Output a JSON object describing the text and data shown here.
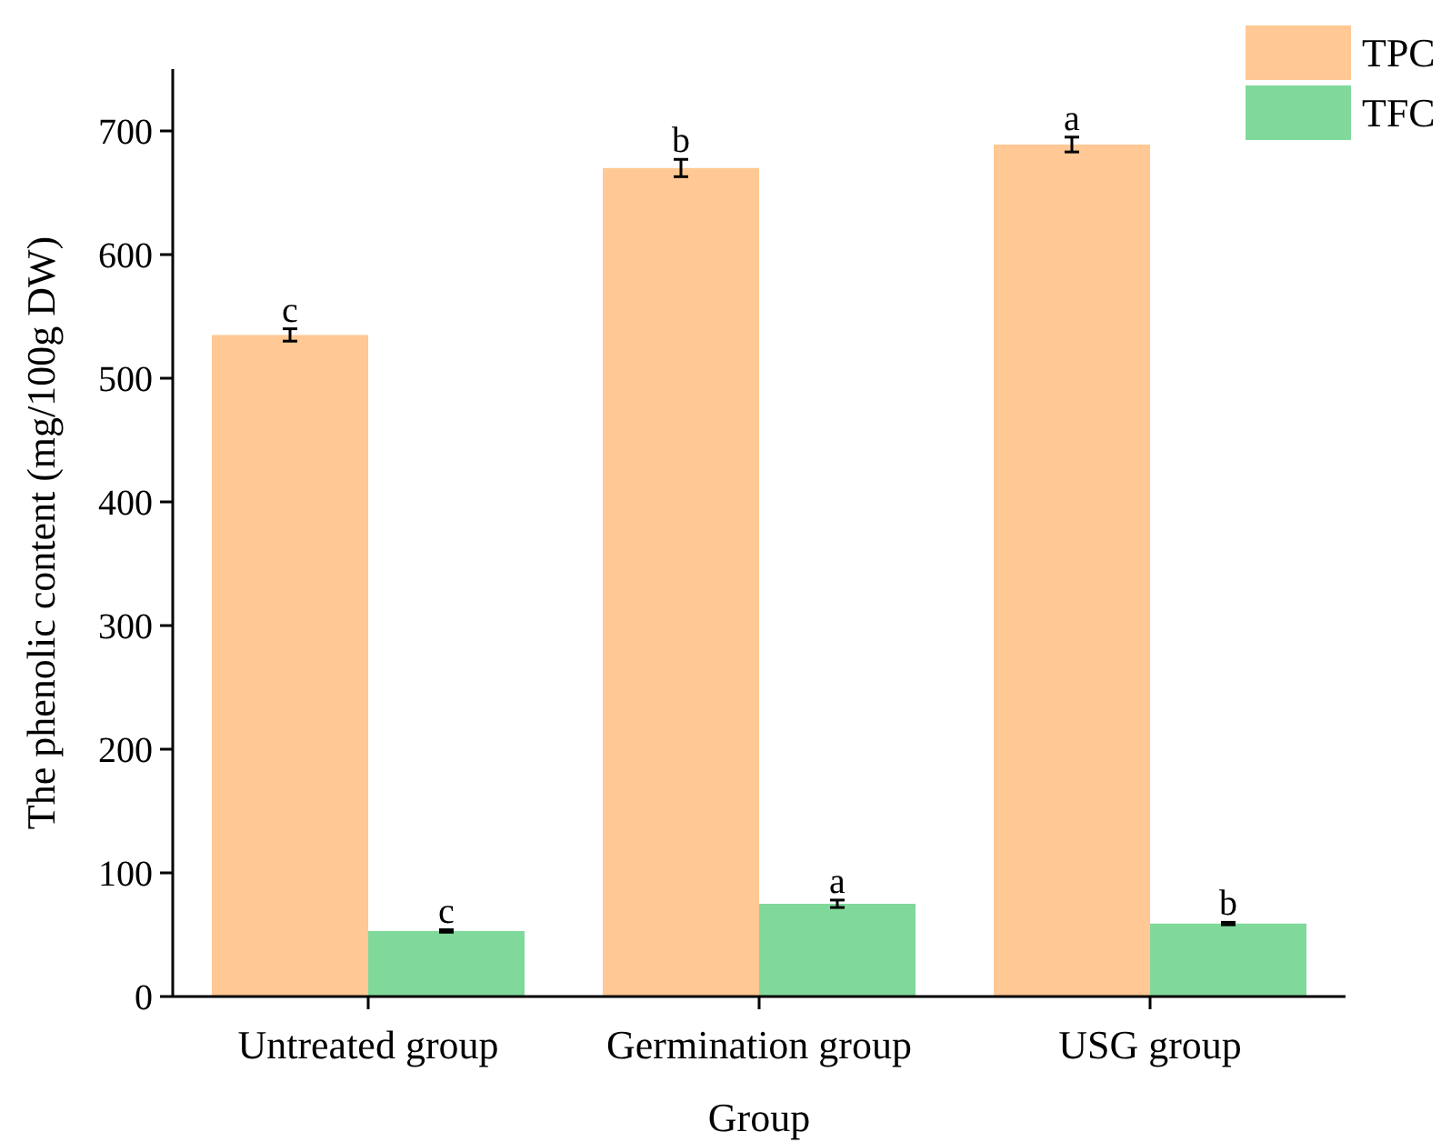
{
  "chart_data": {
    "type": "bar",
    "xlabel": "Group",
    "ylabel": "The phenolic content (mg/100g DW)",
    "categories": [
      "Untreated group",
      "Germination group",
      "USG group"
    ],
    "series": [
      {
        "name": "TPC",
        "color": "#ffc894",
        "values": [
          535,
          670,
          689
        ],
        "errors": [
          5,
          7,
          6
        ],
        "value_labels": [
          "c",
          "b",
          "a"
        ]
      },
      {
        "name": "TFC",
        "color": "#80d99b",
        "values": [
          53,
          75,
          59
        ],
        "errors": [
          1,
          3,
          1
        ],
        "value_labels": [
          "c",
          "a",
          "b"
        ]
      }
    ],
    "ylim": [
      0,
      750
    ],
    "yticks": [
      0,
      100,
      200,
      300,
      400,
      500,
      600,
      700
    ],
    "grid": false,
    "legend": "top right"
  }
}
